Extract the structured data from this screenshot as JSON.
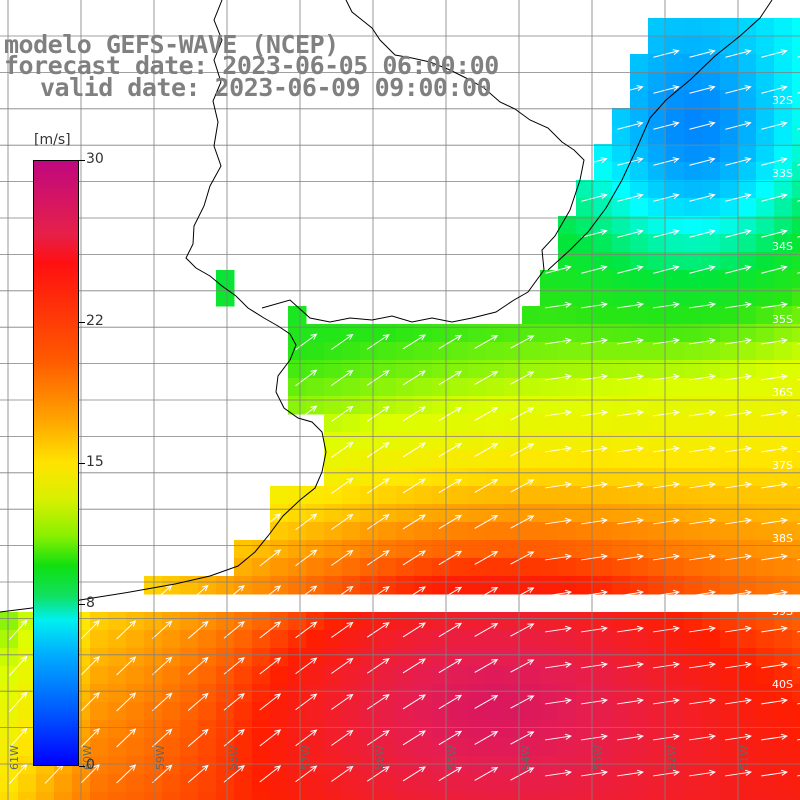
{
  "title": {
    "line1": "modelo GEFS-WAVE (NCEP)",
    "line2": "forecast date: 2023-06-05 06:00:00",
    "line3": "valid date: 2023-06-09 09:00:00"
  },
  "colorbar": {
    "unit": "[m/s]",
    "ticks": [
      "30",
      "22",
      "15",
      "8",
      "0"
    ],
    "tick_values": [
      30,
      22,
      15,
      8,
      0
    ],
    "colors": [
      "#0000ff",
      "#00ffff",
      "#00e000",
      "#ffff00",
      "#ff8c00",
      "#ff0000",
      "#c0087f"
    ]
  },
  "map": {
    "lon_labels": [
      "61W",
      "60W",
      "59W",
      "58W",
      "57W",
      "56W",
      "55W",
      "54W",
      "53W",
      "52W",
      "51W"
    ],
    "lat_labels": [
      "32S",
      "33S",
      "34S",
      "35S",
      "36S",
      "37S",
      "38S",
      "39S",
      "40S"
    ],
    "lon_range": [
      -61.0,
      -50.0
    ],
    "lat_range": [
      -31.0,
      -41.3
    ],
    "coast_color": "#000000",
    "grid_color": "#808080",
    "arrow_color": "#ffffff"
  }
}
